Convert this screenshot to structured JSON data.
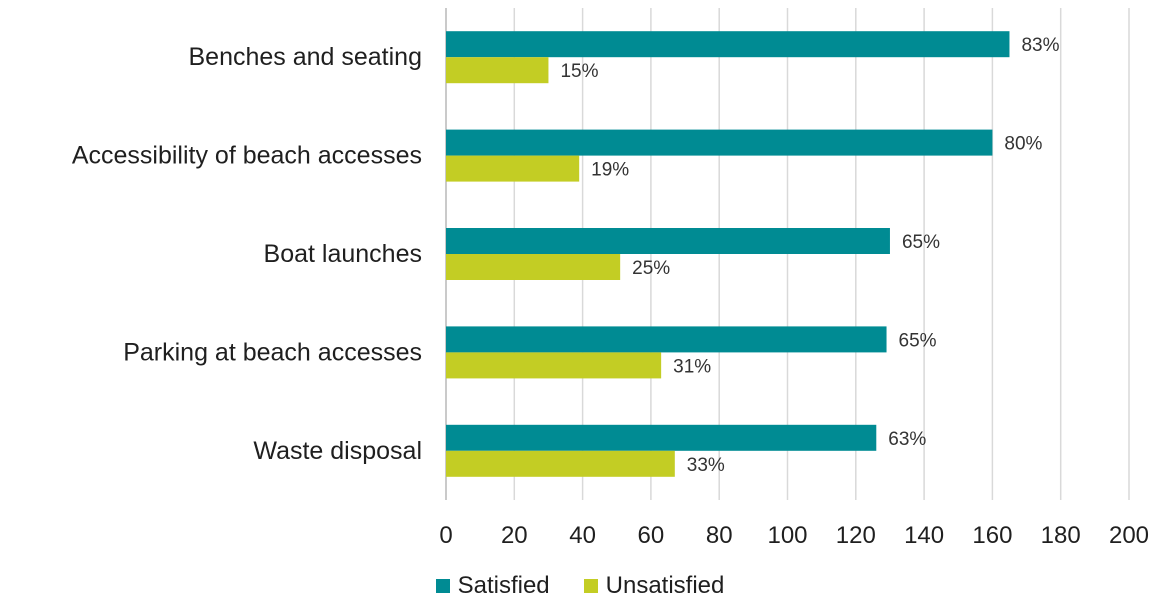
{
  "chart_data": {
    "type": "bar",
    "orientation": "horizontal",
    "categories": [
      "Benches and seating",
      "Accessibility of beach accesses",
      "Boat launches",
      "Parking at beach accesses",
      "Waste disposal"
    ],
    "series": [
      {
        "name": "Satisfied",
        "color": "#008b93",
        "values": [
          165,
          160,
          130,
          129,
          126
        ],
        "labels": [
          "83%",
          "80%",
          "65%",
          "65%",
          "63%"
        ]
      },
      {
        "name": "Unsatisfied",
        "color": "#c3cd24",
        "values": [
          30,
          39,
          51,
          63,
          67
        ],
        "labels": [
          "15%",
          "19%",
          "25%",
          "31%",
          "33%"
        ]
      }
    ],
    "xlim": [
      0,
      200
    ],
    "xticks": [
      0,
      20,
      40,
      60,
      80,
      100,
      120,
      140,
      160,
      180,
      200
    ],
    "grid": true,
    "legend_position": "bottom"
  }
}
